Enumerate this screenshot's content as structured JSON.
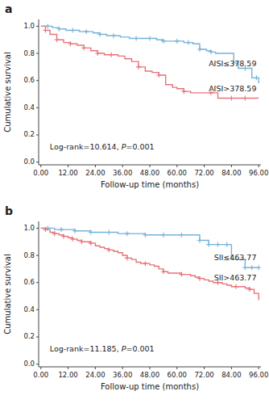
{
  "chart_data": [
    {
      "type": "step",
      "title": "a",
      "x_label": "Follow-up time (months)",
      "y_label": "Cumulative survival",
      "annotations": [
        "Log-rank=10.614, P=0.001"
      ],
      "xlim": [
        -1,
        97
      ],
      "ylim": [
        -0.02,
        1.05
      ],
      "xticks": [
        {
          "value": 0,
          "label": "0.00"
        },
        {
          "value": 12,
          "label": "12.00"
        },
        {
          "value": 24,
          "label": "24.00"
        },
        {
          "value": 36,
          "label": "36.00"
        },
        {
          "value": 48,
          "label": "48.00"
        },
        {
          "value": 60,
          "label": "60.00"
        },
        {
          "value": 72,
          "label": "72.00"
        },
        {
          "value": 84,
          "label": "84.00"
        },
        {
          "value": 96,
          "label": "96.00"
        }
      ],
      "yticks": [
        {
          "value": 0,
          "label": "0.0"
        },
        0.2,
        0.4,
        0.6,
        0.8,
        {
          "value": 1,
          "label": "1.0"
        }
      ],
      "grid": false,
      "series": [
        {
          "name": "AISI≤378.59",
          "type": "step",
          "color": "#74b3d8",
          "x": [
            0,
            3,
            5,
            8,
            11,
            14,
            17,
            20,
            23,
            26,
            29,
            32,
            35,
            37,
            39,
            42,
            45,
            48,
            51,
            54,
            57,
            60,
            63,
            65,
            67,
            70,
            73,
            75,
            77,
            80,
            83,
            85,
            87,
            90,
            93,
            95,
            96
          ],
          "values": [
            1.0,
            1.0,
            0.99,
            0.98,
            0.97,
            0.97,
            0.96,
            0.96,
            0.95,
            0.94,
            0.93,
            0.93,
            0.92,
            0.92,
            0.91,
            0.91,
            0.91,
            0.91,
            0.9,
            0.89,
            0.89,
            0.89,
            0.88,
            0.88,
            0.87,
            0.83,
            0.82,
            0.81,
            0.8,
            0.8,
            0.8,
            0.73,
            0.69,
            0.69,
            0.62,
            0.62,
            0.58
          ]
        },
        {
          "name": "AISI>378.59",
          "type": "step",
          "color": "#e8737a",
          "x": [
            0,
            2,
            4,
            7,
            10,
            13,
            16,
            19,
            22,
            25,
            28,
            31,
            34,
            37,
            40,
            43,
            46,
            49,
            52,
            55,
            58,
            60,
            63,
            66,
            69,
            72,
            75,
            78,
            81,
            84,
            87,
            90,
            93,
            96
          ],
          "values": [
            1.0,
            0.97,
            0.94,
            0.9,
            0.88,
            0.87,
            0.86,
            0.84,
            0.82,
            0.8,
            0.79,
            0.79,
            0.78,
            0.76,
            0.74,
            0.7,
            0.67,
            0.66,
            0.64,
            0.57,
            0.55,
            0.54,
            0.52,
            0.51,
            0.51,
            0.51,
            0.51,
            0.47,
            0.47,
            0.47,
            0.47,
            0.47,
            0.47,
            0.47
          ]
        },
        {
          "type": "scatter",
          "marker": "+",
          "color": "#74b3d8",
          "x": [
            3,
            8,
            14,
            20,
            26,
            32,
            42,
            48,
            54,
            60,
            65,
            70,
            75,
            90,
            95
          ],
          "values": [
            1.0,
            0.98,
            0.97,
            0.96,
            0.94,
            0.93,
            0.91,
            0.91,
            0.89,
            0.89,
            0.88,
            0.83,
            0.81,
            0.69,
            0.62
          ]
        },
        {
          "type": "scatter",
          "marker": "+",
          "color": "#e8737a",
          "x": [
            2,
            7,
            13,
            19,
            25,
            31,
            43,
            52,
            63,
            75,
            84,
            90
          ],
          "values": [
            0.97,
            0.9,
            0.87,
            0.84,
            0.8,
            0.79,
            0.7,
            0.64,
            0.52,
            0.51,
            0.47,
            0.47
          ]
        }
      ]
    },
    {
      "type": "step",
      "title": "b",
      "x_label": "Follow-up time (months)",
      "y_label": "Cumulative survival",
      "annotations": [
        "Log-rank=11.185, P=0.001"
      ],
      "xlim": [
        -1,
        97
      ],
      "ylim": [
        -0.02,
        1.05
      ],
      "xticks": [
        {
          "value": 0,
          "label": "0.00"
        },
        {
          "value": 12,
          "label": "12.00"
        },
        {
          "value": 24,
          "label": "24.00"
        },
        {
          "value": 36,
          "label": "36.00"
        },
        {
          "value": 48,
          "label": "48.00"
        },
        {
          "value": 60,
          "label": "60.00"
        },
        {
          "value": 72,
          "label": "72.00"
        },
        {
          "value": 84,
          "label": "84.00"
        },
        {
          "value": 96,
          "label": "96.00"
        }
      ],
      "yticks": [
        {
          "value": 0,
          "label": "0.0"
        },
        0.2,
        0.4,
        0.6,
        0.8,
        {
          "value": 1,
          "label": "1.0"
        }
      ],
      "grid": false,
      "series": [
        {
          "name": "SII≤463.77",
          "type": "step",
          "color": "#74b3d8",
          "x": [
            0,
            3,
            6,
            9,
            12,
            15,
            18,
            22,
            26,
            30,
            34,
            38,
            42,
            46,
            50,
            54,
            58,
            62,
            66,
            70,
            72,
            74,
            78,
            82,
            84,
            86,
            90,
            93,
            96
          ],
          "values": [
            1.0,
            1.0,
            0.99,
            0.99,
            0.99,
            0.98,
            0.98,
            0.97,
            0.97,
            0.97,
            0.96,
            0.96,
            0.96,
            0.95,
            0.95,
            0.95,
            0.95,
            0.95,
            0.95,
            0.91,
            0.91,
            0.88,
            0.88,
            0.88,
            0.77,
            0.77,
            0.71,
            0.71,
            0.71
          ]
        },
        {
          "name": "SII>463.77",
          "type": "step",
          "color": "#e8737a",
          "x": [
            0,
            2,
            4,
            6,
            8,
            10,
            12,
            14,
            16,
            18,
            20,
            22,
            24,
            26,
            28,
            30,
            32,
            34,
            36,
            38,
            40,
            42,
            44,
            46,
            48,
            50,
            52,
            54,
            56,
            58,
            60,
            62,
            64,
            66,
            68,
            70,
            72,
            74,
            76,
            78,
            80,
            82,
            84,
            86,
            88,
            90,
            92,
            94,
            96
          ],
          "values": [
            1.0,
            0.99,
            0.97,
            0.96,
            0.95,
            0.94,
            0.93,
            0.92,
            0.91,
            0.9,
            0.9,
            0.89,
            0.87,
            0.86,
            0.85,
            0.84,
            0.83,
            0.82,
            0.8,
            0.78,
            0.77,
            0.75,
            0.74,
            0.74,
            0.73,
            0.72,
            0.7,
            0.68,
            0.67,
            0.67,
            0.67,
            0.66,
            0.66,
            0.65,
            0.64,
            0.63,
            0.62,
            0.61,
            0.6,
            0.6,
            0.59,
            0.58,
            0.57,
            0.57,
            0.57,
            0.56,
            0.55,
            0.52,
            0.47
          ]
        },
        {
          "type": "scatter",
          "marker": "+",
          "color": "#74b3d8",
          "x": [
            3,
            9,
            15,
            22,
            30,
            38,
            46,
            54,
            62,
            70,
            74,
            78,
            82,
            90,
            93,
            96
          ],
          "values": [
            1.0,
            0.99,
            0.98,
            0.97,
            0.97,
            0.96,
            0.95,
            0.95,
            0.95,
            0.91,
            0.88,
            0.88,
            0.88,
            0.71,
            0.71,
            0.71
          ]
        },
        {
          "type": "scatter",
          "marker": "+",
          "color": "#e8737a",
          "x": [
            2,
            6,
            10,
            14,
            18,
            22,
            30,
            38,
            46,
            54,
            62,
            70,
            78,
            86,
            92
          ],
          "values": [
            0.99,
            0.96,
            0.94,
            0.92,
            0.9,
            0.89,
            0.84,
            0.78,
            0.74,
            0.68,
            0.66,
            0.63,
            0.6,
            0.57,
            0.55
          ]
        }
      ]
    }
  ]
}
